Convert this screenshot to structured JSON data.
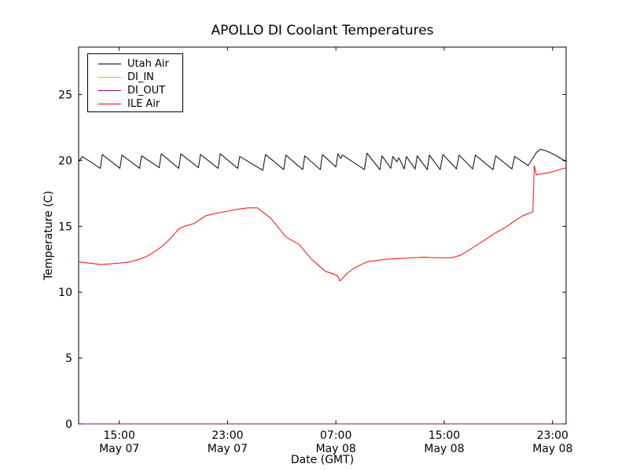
{
  "chart_data": {
    "type": "line",
    "title": "APOLLO DI Coolant Temperatures",
    "xlabel": "Date (GMT)",
    "ylabel": "Temperature (C)",
    "x_axis_unit": "hours after May 07 12:00 GMT",
    "xlim": [
      0,
      36
    ],
    "ylim": [
      0,
      28.6
    ],
    "grid": false,
    "legend_position": "upper left",
    "x_ticks": [
      {
        "t": 3,
        "time": "15:00",
        "date": "May 07"
      },
      {
        "t": 11,
        "time": "23:00",
        "date": "May 07"
      },
      {
        "t": 19,
        "time": "07:00",
        "date": "May 08"
      },
      {
        "t": 27,
        "time": "15:00",
        "date": "May 08"
      },
      {
        "t": 35,
        "time": "23:00",
        "date": "May 08"
      }
    ],
    "y_ticks": [
      0,
      5,
      10,
      15,
      20,
      25
    ],
    "series": [
      {
        "name": "Utah Air",
        "color": "#000000",
        "points": [
          [
            0,
            19.9
          ],
          [
            0.27,
            20.3
          ],
          [
            1.6,
            19.4
          ],
          [
            1.75,
            20.45
          ],
          [
            3.05,
            19.4
          ],
          [
            3.2,
            20.4
          ],
          [
            4.5,
            19.4
          ],
          [
            4.65,
            20.35
          ],
          [
            5.95,
            19.45
          ],
          [
            6.1,
            20.5
          ],
          [
            7.4,
            19.4
          ],
          [
            7.55,
            20.5
          ],
          [
            8.85,
            19.45
          ],
          [
            9.0,
            20.45
          ],
          [
            10.3,
            19.4
          ],
          [
            10.45,
            20.5
          ],
          [
            11.75,
            19.4
          ],
          [
            11.9,
            20.3
          ],
          [
            13.6,
            19.25
          ],
          [
            13.8,
            20.45
          ],
          [
            15.15,
            19.3
          ],
          [
            15.3,
            20.4
          ],
          [
            16.55,
            19.3
          ],
          [
            16.7,
            20.35
          ],
          [
            17.85,
            19.3
          ],
          [
            18.0,
            20.45
          ],
          [
            19.0,
            19.5
          ],
          [
            19.15,
            20.5
          ],
          [
            19.35,
            20.15
          ],
          [
            19.5,
            20.4
          ],
          [
            21.1,
            19.3
          ],
          [
            21.3,
            20.55
          ],
          [
            22.25,
            19.3
          ],
          [
            22.4,
            20.35
          ],
          [
            23.05,
            19.4
          ],
          [
            23.2,
            20.3
          ],
          [
            23.5,
            19.9
          ],
          [
            23.65,
            20.2
          ],
          [
            24.05,
            19.35
          ],
          [
            24.2,
            20.3
          ],
          [
            24.85,
            19.35
          ],
          [
            25.0,
            20.35
          ],
          [
            25.75,
            19.3
          ],
          [
            25.9,
            20.4
          ],
          [
            26.7,
            19.3
          ],
          [
            26.9,
            20.45
          ],
          [
            27.9,
            19.35
          ],
          [
            28.1,
            20.4
          ],
          [
            29.1,
            19.35
          ],
          [
            29.3,
            20.4
          ],
          [
            30.6,
            19.3
          ],
          [
            30.8,
            20.35
          ],
          [
            32.0,
            19.35
          ],
          [
            32.2,
            20.3
          ],
          [
            33.2,
            19.6
          ],
          [
            33.8,
            20.6
          ],
          [
            34.1,
            20.85
          ],
          [
            34.6,
            20.7
          ],
          [
            35.2,
            20.4
          ],
          [
            36,
            19.9
          ]
        ]
      },
      {
        "name": "DI_IN",
        "color": "#ffa500",
        "points": [
          [
            0,
            0
          ],
          [
            36,
            0
          ]
        ]
      },
      {
        "name": "DI_OUT",
        "color": "#800080",
        "points": [
          [
            0,
            0
          ],
          [
            36,
            0
          ]
        ]
      },
      {
        "name": "ILE Air",
        "color": "#ff0000",
        "points": [
          [
            0,
            12.3
          ],
          [
            0.8,
            12.2
          ],
          [
            1.6,
            12.1
          ],
          [
            2.4,
            12.15
          ],
          [
            3.0,
            12.2
          ],
          [
            3.8,
            12.3
          ],
          [
            4.5,
            12.5
          ],
          [
            5.0,
            12.7
          ],
          [
            5.5,
            13.0
          ],
          [
            6.2,
            13.5
          ],
          [
            6.9,
            14.2
          ],
          [
            7.4,
            14.8
          ],
          [
            7.8,
            15.0
          ],
          [
            8.5,
            15.2
          ],
          [
            9.4,
            15.8
          ],
          [
            10.2,
            16.0
          ],
          [
            11.0,
            16.15
          ],
          [
            11.8,
            16.3
          ],
          [
            12.5,
            16.4
          ],
          [
            13.2,
            16.4
          ],
          [
            14.2,
            15.6
          ],
          [
            15.3,
            14.2
          ],
          [
            16.3,
            13.6
          ],
          [
            17.2,
            12.5
          ],
          [
            18.2,
            11.6
          ],
          [
            19.0,
            11.3
          ],
          [
            19.15,
            11.2
          ],
          [
            19.3,
            10.85
          ],
          [
            19.8,
            11.4
          ],
          [
            20.3,
            11.8
          ],
          [
            21.3,
            12.3
          ],
          [
            22.7,
            12.5
          ],
          [
            23.5,
            12.55
          ],
          [
            24.5,
            12.6
          ],
          [
            25.5,
            12.65
          ],
          [
            26.5,
            12.6
          ],
          [
            27.5,
            12.6
          ],
          [
            28.2,
            12.8
          ],
          [
            29.0,
            13.3
          ],
          [
            29.9,
            13.9
          ],
          [
            30.8,
            14.5
          ],
          [
            31.5,
            14.9
          ],
          [
            32.2,
            15.4
          ],
          [
            32.8,
            15.8
          ],
          [
            33.3,
            16.0
          ],
          [
            33.55,
            16.1
          ],
          [
            33.65,
            19.6
          ],
          [
            33.8,
            18.9
          ],
          [
            34.3,
            19.0
          ],
          [
            34.9,
            19.1
          ],
          [
            35.5,
            19.3
          ],
          [
            36,
            19.45
          ]
        ]
      }
    ]
  }
}
